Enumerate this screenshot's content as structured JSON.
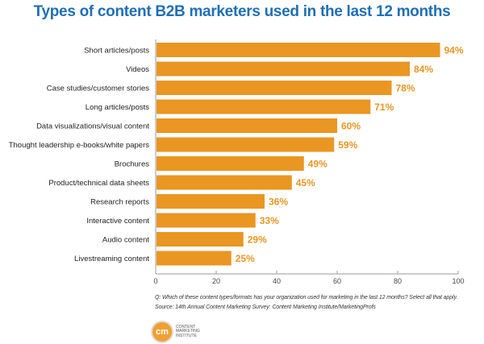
{
  "chart_data": {
    "type": "bar",
    "orientation": "horizontal",
    "title": "Types of content B2B marketers used in the last 12 months",
    "categories": [
      "Short articles/posts",
      "Videos",
      "Case studies/customer stories",
      "Long articles/posts",
      "Data visualizations/visual content",
      "Thought leadership e-books/white papers",
      "Brochures",
      "Product/technical data sheets",
      "Research reports",
      "Interactive content",
      "Audio content",
      "Livestreaming content"
    ],
    "values": [
      94,
      84,
      78,
      71,
      60,
      59,
      49,
      45,
      36,
      33,
      29,
      25
    ],
    "value_labels": [
      "94%",
      "84%",
      "78%",
      "71%",
      "60%",
      "59%",
      "49%",
      "45%",
      "36%",
      "33%",
      "29%",
      "25%"
    ],
    "xlim": [
      0,
      100
    ],
    "xticks": [
      "0",
      "20",
      "40",
      "60",
      "80",
      "100"
    ],
    "grid": false,
    "bar_color": "#ea9623",
    "label_color": "#ea9623",
    "title_color": "#1f6fb5"
  },
  "notes": {
    "question": "Q: Which of these content types/formats has your organization used for marketing in the last 12 months? Select all that apply.",
    "source": "Source: 14th Annual Content Marketing Survey: Content Marketing Institute/MarketingProfs"
  },
  "logo": {
    "mark": "cm",
    "text": "CONTENT MARKETING INSTITUTE"
  }
}
